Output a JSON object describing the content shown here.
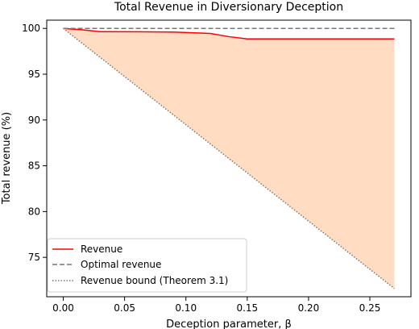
{
  "chart_data": {
    "type": "line",
    "title": "Total Revenue in Diversionary Deception",
    "xlabel": "Deception parameter, β",
    "ylabel": "Total revenue (%)",
    "xlim": [
      -0.0135,
      0.2835
    ],
    "ylim": [
      70.7,
      100.9
    ],
    "xticks": [
      0.0,
      0.05,
      0.1,
      0.15,
      0.2,
      0.25
    ],
    "xtick_labels": [
      "0.00",
      "0.05",
      "0.10",
      "0.15",
      "0.20",
      "0.25"
    ],
    "yticks": [
      75,
      80,
      85,
      90,
      95,
      100
    ],
    "ytick_labels": [
      "75",
      "80",
      "85",
      "90",
      "95",
      "100"
    ],
    "grid": false,
    "legend_position": "lower-left",
    "shaded_region": {
      "between": [
        "Revenue",
        "Revenue bound (Theorem 3.1)"
      ],
      "color": "#ffdcc2"
    },
    "series": [
      {
        "name": "Revenue",
        "style": "solid",
        "color": "#ff0000",
        "x": [
          0.0,
          0.015,
          0.03,
          0.06,
          0.09,
          0.12,
          0.135,
          0.15,
          0.18,
          0.21,
          0.24,
          0.27
        ],
        "y": [
          100.0,
          99.85,
          99.65,
          99.63,
          99.6,
          99.45,
          99.1,
          98.85,
          98.85,
          98.85,
          98.85,
          98.85
        ]
      },
      {
        "name": "Optimal revenue",
        "style": "dashed",
        "color": "#777777",
        "x": [
          0.0,
          0.27
        ],
        "y": [
          100.0,
          100.0
        ]
      },
      {
        "name": "Revenue bound (Theorem 3.1)",
        "style": "dotted",
        "color": "#777777",
        "x": [
          0.0,
          0.27
        ],
        "y": [
          100.0,
          71.6
        ]
      }
    ]
  }
}
